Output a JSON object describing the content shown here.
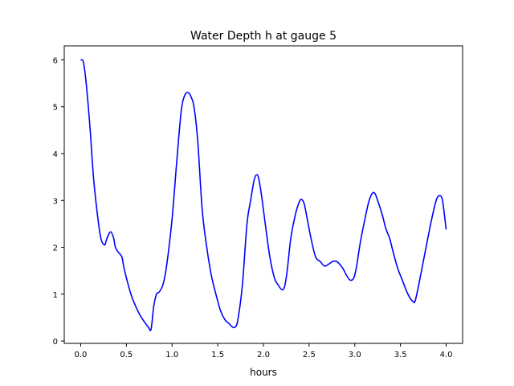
{
  "chart_data": {
    "type": "line",
    "title": "Water Depth h at gauge 5",
    "xlabel": "hours",
    "ylabel": "",
    "xlim": [
      -0.18,
      4.18
    ],
    "ylim": [
      -0.05,
      6.3
    ],
    "xticks": [
      "0.0",
      "0.5",
      "1.0",
      "1.5",
      "2.0",
      "2.5",
      "3.0",
      "3.5",
      "4.0"
    ],
    "xtick_values": [
      0,
      0.5,
      1.0,
      1.5,
      2.0,
      2.5,
      3.0,
      3.5,
      4.0
    ],
    "yticks": [
      "0",
      "1",
      "2",
      "3",
      "4",
      "5",
      "6"
    ],
    "ytick_values": [
      0,
      1,
      2,
      3,
      4,
      5,
      6
    ],
    "grid": false,
    "legend": "none",
    "series": [
      {
        "color": "#0000ff",
        "x": [
          0.0,
          0.03,
          0.06,
          0.1,
          0.14,
          0.18,
          0.22,
          0.26,
          0.28,
          0.3,
          0.33,
          0.36,
          0.38,
          0.41,
          0.45,
          0.47,
          0.5,
          0.55,
          0.6,
          0.65,
          0.7,
          0.74,
          0.77,
          0.8,
          0.83,
          0.86,
          0.9,
          0.94,
          1.0,
          1.05,
          1.1,
          1.14,
          1.18,
          1.21,
          1.24,
          1.28,
          1.33,
          1.38,
          1.43,
          1.48,
          1.53,
          1.58,
          1.62,
          1.66,
          1.69,
          1.72,
          1.77,
          1.82,
          1.86,
          1.9,
          1.93,
          1.95,
          1.98,
          2.02,
          2.07,
          2.12,
          2.16,
          2.2,
          2.23,
          2.26,
          2.3,
          2.35,
          2.4,
          2.43,
          2.45,
          2.48,
          2.52,
          2.57,
          2.62,
          2.67,
          2.72,
          2.76,
          2.8,
          2.83,
          2.87,
          2.91,
          2.95,
          2.99,
          3.02,
          3.06,
          3.1,
          3.15,
          3.19,
          3.22,
          3.25,
          3.3,
          3.34,
          3.38,
          3.42,
          3.47,
          3.52,
          3.57,
          3.61,
          3.64,
          3.66,
          3.7,
          3.76,
          3.82,
          3.87,
          3.9,
          3.93,
          3.96,
          4.0
        ],
        "y": [
          6.0,
          5.95,
          5.5,
          4.6,
          3.5,
          2.75,
          2.2,
          2.05,
          2.15,
          2.25,
          2.33,
          2.2,
          2.0,
          1.9,
          1.8,
          1.6,
          1.35,
          1.0,
          0.75,
          0.55,
          0.4,
          0.3,
          0.25,
          0.75,
          1.0,
          1.05,
          1.2,
          1.6,
          2.6,
          3.8,
          4.9,
          5.25,
          5.3,
          5.2,
          5.0,
          4.3,
          2.8,
          2.0,
          1.4,
          1.0,
          0.65,
          0.45,
          0.38,
          0.3,
          0.3,
          0.45,
          1.2,
          2.5,
          3.0,
          3.45,
          3.55,
          3.45,
          3.1,
          2.5,
          1.8,
          1.35,
          1.2,
          1.1,
          1.15,
          1.5,
          2.2,
          2.7,
          3.0,
          3.0,
          2.9,
          2.6,
          2.2,
          1.8,
          1.7,
          1.6,
          1.65,
          1.7,
          1.7,
          1.65,
          1.55,
          1.4,
          1.3,
          1.35,
          1.6,
          2.1,
          2.5,
          2.95,
          3.15,
          3.15,
          3.0,
          2.7,
          2.4,
          2.2,
          1.9,
          1.55,
          1.3,
          1.05,
          0.9,
          0.84,
          0.85,
          1.2,
          1.8,
          2.4,
          2.85,
          3.05,
          3.1,
          3.0,
          2.38
        ]
      }
    ]
  }
}
